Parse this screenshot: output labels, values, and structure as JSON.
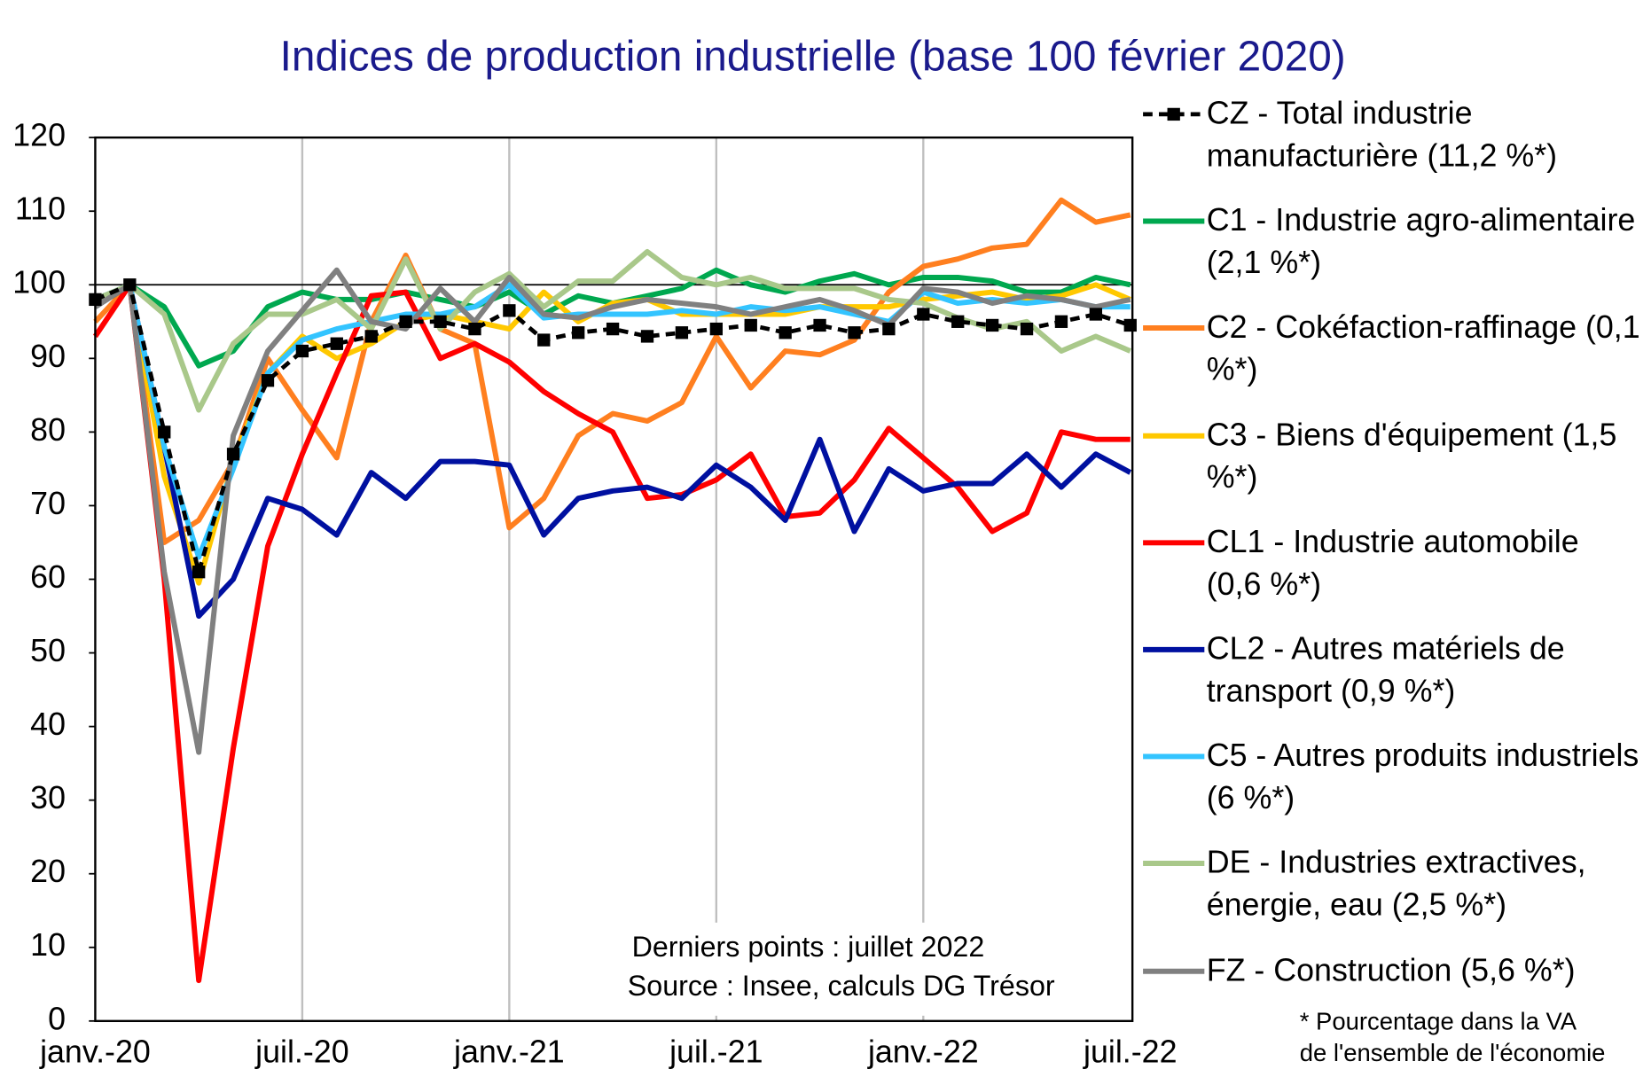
{
  "chart_data": {
    "type": "line",
    "title": "Indices de production industrielle (base 100 février 2020)",
    "categories": [
      "janv.-20",
      null,
      null,
      null,
      null,
      null,
      "juil.-20",
      null,
      null,
      null,
      null,
      null,
      "janv.-21",
      null,
      null,
      null,
      null,
      null,
      "juil.-21",
      null,
      null,
      null,
      null,
      null,
      "janv.-22",
      null,
      null,
      null,
      null,
      null,
      "juil.-22"
    ],
    "ylim": [
      0,
      120
    ],
    "yticks": [
      0,
      10,
      20,
      30,
      40,
      50,
      60,
      70,
      80,
      90,
      100,
      110,
      120
    ],
    "reference_line": 100,
    "series": [
      {
        "name": "CZ - Total industrie manufacturière (11,2 %*)",
        "color": "#000000",
        "dashed": true,
        "marker": "square",
        "values": [
          98,
          100,
          80,
          61,
          77,
          87,
          91,
          92,
          93,
          95,
          95,
          94,
          96.5,
          92.5,
          93.5,
          94,
          93,
          93.5,
          94,
          94.5,
          93.5,
          94.5,
          93.5,
          94,
          96,
          95,
          94.5,
          94,
          95,
          96,
          94.5
        ]
      },
      {
        "name": "C1 - Industrie agro-alimentaire (2,1 %*)",
        "color": "#00a84f",
        "values": [
          97,
          100,
          97,
          89,
          91,
          97,
          99,
          98,
          98,
          99,
          98,
          97,
          99,
          96,
          98.5,
          97.5,
          98.5,
          99.5,
          102,
          100,
          99,
          100.5,
          101.5,
          100,
          101,
          101,
          100.5,
          99,
          99,
          101,
          100
        ]
      },
      {
        "name": "C2 - Cokéfaction-raffinage (0,1 %*)",
        "color": "#ff7f1f",
        "values": [
          95,
          100,
          65,
          68,
          76,
          90,
          83,
          76.5,
          95,
          104,
          94,
          92,
          67,
          71,
          79.5,
          82.5,
          81.5,
          84,
          93,
          86,
          91,
          90.5,
          92.5,
          99,
          102.5,
          103.5,
          105,
          105.5,
          111.5,
          108.5,
          109.5
        ]
      },
      {
        "name": "C3 - Biens d'équipement (1,5 %*)",
        "color": "#ffc800",
        "values": [
          97,
          100,
          74,
          59.5,
          76,
          88,
          93,
          90,
          92,
          95,
          96,
          95,
          94,
          99,
          95,
          97.5,
          98,
          96,
          96,
          96,
          96,
          97,
          97,
          97,
          98,
          98.5,
          99,
          98,
          98.5,
          100,
          98
        ]
      },
      {
        "name": "CL1 - Industrie automobile (0,6 %*)",
        "color": "#ff0000",
        "values": [
          93,
          100,
          60,
          5.5,
          37,
          64.5,
          77,
          88,
          98.5,
          99,
          90,
          92,
          89.5,
          85.5,
          82.5,
          80,
          71,
          71.5,
          73.5,
          77,
          68.5,
          69,
          73.5,
          80.5,
          76.5,
          72.5,
          66.5,
          69,
          80,
          79,
          79
        ]
      },
      {
        "name": "CL2 - Autres matériels de transport (0,9 %*)",
        "color": "#0010a0",
        "values": [
          97,
          100,
          78,
          55,
          60,
          71,
          69.5,
          66,
          74.5,
          71,
          76,
          76,
          75.5,
          66,
          71,
          72,
          72.5,
          71,
          75.5,
          72.5,
          68,
          79,
          66.5,
          75,
          72,
          73,
          73,
          77,
          72.5,
          77,
          74.5
        ]
      },
      {
        "name": "C5 - Autres produits industriels (6 %*)",
        "color": "#33c4ff",
        "values": [
          98,
          100,
          78,
          63,
          75,
          88,
          92.5,
          94,
          95,
          96,
          96,
          97,
          100,
          95.5,
          96,
          96,
          96,
          96.5,
          96,
          97,
          96.5,
          97,
          96,
          95,
          99,
          97.5,
          98,
          97.5,
          98,
          97,
          97
        ]
      },
      {
        "name": "DE - Industries extractives, énergie, eau (2,5 %*)",
        "color": "#a9c88a",
        "values": [
          98,
          100,
          96,
          83,
          92,
          96,
          96,
          98,
          94,
          103.5,
          94,
          99,
          101.5,
          97,
          100.5,
          100.5,
          104.5,
          101,
          100,
          101,
          99.5,
          99.5,
          99.5,
          98,
          97.5,
          95.5,
          94,
          95,
          91,
          93,
          91
        ]
      },
      {
        "name": "FZ - Construction (5,6 %*)",
        "color": "#808080",
        "values": [
          97,
          100,
          61,
          36.5,
          79.5,
          91,
          96.5,
          102,
          95,
          94,
          99.5,
          95,
          101,
          96,
          95.5,
          97,
          98,
          97.5,
          97,
          96,
          97,
          98,
          96.5,
          94.5,
          99.5,
          99,
          97.5,
          98.5,
          98,
          97,
          98
        ]
      }
    ],
    "notes": [
      "Derniers points : juillet 2022",
      "Source : Insee, calculs DG Trésor"
    ],
    "footnote": [
      "* Pourcentage dans la VA",
      "de l'ensemble de l'économie"
    ]
  }
}
